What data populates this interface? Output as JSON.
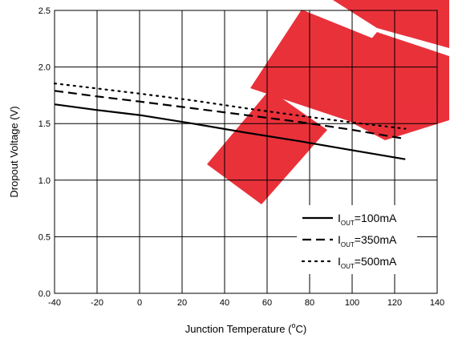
{
  "chart_data": {
    "type": "line",
    "title": "",
    "xlabel": "Junction Temperature (°C)",
    "xlabel_parts": {
      "before": "Junction Temperature (",
      "sup": "o",
      "after": "C)"
    },
    "ylabel": "Dropout Voltage (V)",
    "xlim": [
      -40,
      140
    ],
    "ylim": [
      0.0,
      2.5
    ],
    "x_ticks": [
      -40,
      -20,
      0,
      20,
      40,
      60,
      80,
      100,
      120,
      140
    ],
    "y_ticks": [
      0.0,
      0.5,
      1.0,
      1.5,
      2.0,
      2.5
    ],
    "x_tick_labels": [
      "-40",
      "-20",
      "0",
      "20",
      "40",
      "60",
      "80",
      "100",
      "120",
      "140"
    ],
    "y_tick_labels": [
      "0.0",
      "0.5",
      "1.0",
      "1.5",
      "2.0",
      "2.5"
    ],
    "grid": true,
    "legend_position": "bottom-right",
    "series": [
      {
        "name": "IOUT=100mA",
        "label_main": "I",
        "label_sub": "OUT",
        "label_tail": "=100mA",
        "style": "solid",
        "x": [
          -40,
          -20,
          0,
          25,
          50,
          75,
          100,
          125
        ],
        "y": [
          1.67,
          1.62,
          1.575,
          1.5,
          1.42,
          1.345,
          1.265,
          1.185
        ]
      },
      {
        "name": "IOUT=350mA",
        "label_main": "I",
        "label_sub": "OUT",
        "label_tail": "=350mA",
        "style": "dashed",
        "x": [
          -40,
          -20,
          0,
          25,
          50,
          75,
          100,
          125
        ],
        "y": [
          1.79,
          1.74,
          1.695,
          1.635,
          1.575,
          1.515,
          1.445,
          1.365
        ]
      },
      {
        "name": "IOUT=500mA",
        "label_main": "I",
        "label_sub": "OUT",
        "label_tail": "=500mA",
        "style": "dotted",
        "x": [
          -40,
          -20,
          0,
          25,
          50,
          75,
          100,
          125
        ],
        "y": [
          1.855,
          1.81,
          1.765,
          1.705,
          1.635,
          1.57,
          1.51,
          1.455
        ]
      }
    ],
    "colors": {
      "line": "#000000",
      "grid": "#000000",
      "watermark": "#e8202a"
    }
  }
}
